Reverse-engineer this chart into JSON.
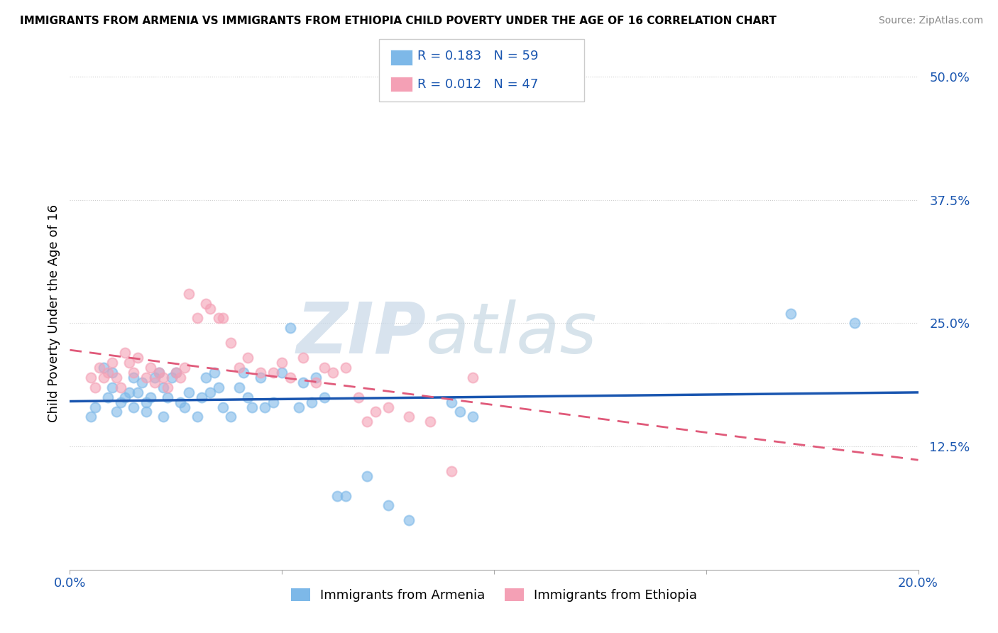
{
  "title": "IMMIGRANTS FROM ARMENIA VS IMMIGRANTS FROM ETHIOPIA CHILD POVERTY UNDER THE AGE OF 16 CORRELATION CHART",
  "source": "Source: ZipAtlas.com",
  "ylabel": "Child Poverty Under the Age of 16",
  "R_armenia": "0.183",
  "N_armenia": "59",
  "R_ethiopia": "0.012",
  "N_ethiopia": "47",
  "color_armenia": "#7db8e8",
  "color_ethiopia": "#f4a0b5",
  "line_color_armenia": "#1a56b0",
  "line_color_ethiopia": "#e05a7a",
  "tick_color": "#1a56b0",
  "watermark_color": "#d0dff0",
  "xlim": [
    0.0,
    0.2
  ],
  "ylim": [
    0.0,
    0.52
  ],
  "legend_armenia": "Immigrants from Armenia",
  "legend_ethiopia": "Immigrants from Ethiopia",
  "armenia_x": [
    0.005,
    0.006,
    0.008,
    0.009,
    0.01,
    0.01,
    0.011,
    0.012,
    0.013,
    0.014,
    0.015,
    0.015,
    0.016,
    0.017,
    0.018,
    0.018,
    0.019,
    0.02,
    0.021,
    0.022,
    0.022,
    0.023,
    0.024,
    0.025,
    0.026,
    0.027,
    0.028,
    0.03,
    0.031,
    0.032,
    0.033,
    0.034,
    0.035,
    0.036,
    0.038,
    0.04,
    0.041,
    0.042,
    0.043,
    0.045,
    0.046,
    0.048,
    0.05,
    0.052,
    0.054,
    0.055,
    0.057,
    0.058,
    0.06,
    0.063,
    0.065,
    0.07,
    0.075,
    0.08,
    0.09,
    0.092,
    0.095,
    0.17,
    0.185
  ],
  "armenia_y": [
    0.155,
    0.165,
    0.205,
    0.175,
    0.2,
    0.185,
    0.16,
    0.17,
    0.175,
    0.18,
    0.195,
    0.165,
    0.18,
    0.19,
    0.16,
    0.17,
    0.175,
    0.195,
    0.2,
    0.185,
    0.155,
    0.175,
    0.195,
    0.2,
    0.17,
    0.165,
    0.18,
    0.155,
    0.175,
    0.195,
    0.18,
    0.2,
    0.185,
    0.165,
    0.155,
    0.185,
    0.2,
    0.175,
    0.165,
    0.195,
    0.165,
    0.17,
    0.2,
    0.245,
    0.165,
    0.19,
    0.17,
    0.195,
    0.175,
    0.075,
    0.075,
    0.095,
    0.065,
    0.05,
    0.17,
    0.16,
    0.155,
    0.26,
    0.25
  ],
  "ethiopia_x": [
    0.005,
    0.006,
    0.007,
    0.008,
    0.009,
    0.01,
    0.011,
    0.012,
    0.013,
    0.014,
    0.015,
    0.016,
    0.018,
    0.019,
    0.02,
    0.021,
    0.022,
    0.023,
    0.025,
    0.026,
    0.027,
    0.028,
    0.03,
    0.032,
    0.033,
    0.035,
    0.036,
    0.038,
    0.04,
    0.042,
    0.045,
    0.048,
    0.05,
    0.052,
    0.055,
    0.058,
    0.06,
    0.062,
    0.065,
    0.068,
    0.07,
    0.072,
    0.075,
    0.08,
    0.085,
    0.09,
    0.095
  ],
  "ethiopia_y": [
    0.195,
    0.185,
    0.205,
    0.195,
    0.2,
    0.21,
    0.195,
    0.185,
    0.22,
    0.21,
    0.2,
    0.215,
    0.195,
    0.205,
    0.19,
    0.2,
    0.195,
    0.185,
    0.2,
    0.195,
    0.205,
    0.28,
    0.255,
    0.27,
    0.265,
    0.255,
    0.255,
    0.23,
    0.205,
    0.215,
    0.2,
    0.2,
    0.21,
    0.195,
    0.215,
    0.19,
    0.205,
    0.2,
    0.205,
    0.175,
    0.15,
    0.16,
    0.165,
    0.155,
    0.15,
    0.1,
    0.195
  ]
}
